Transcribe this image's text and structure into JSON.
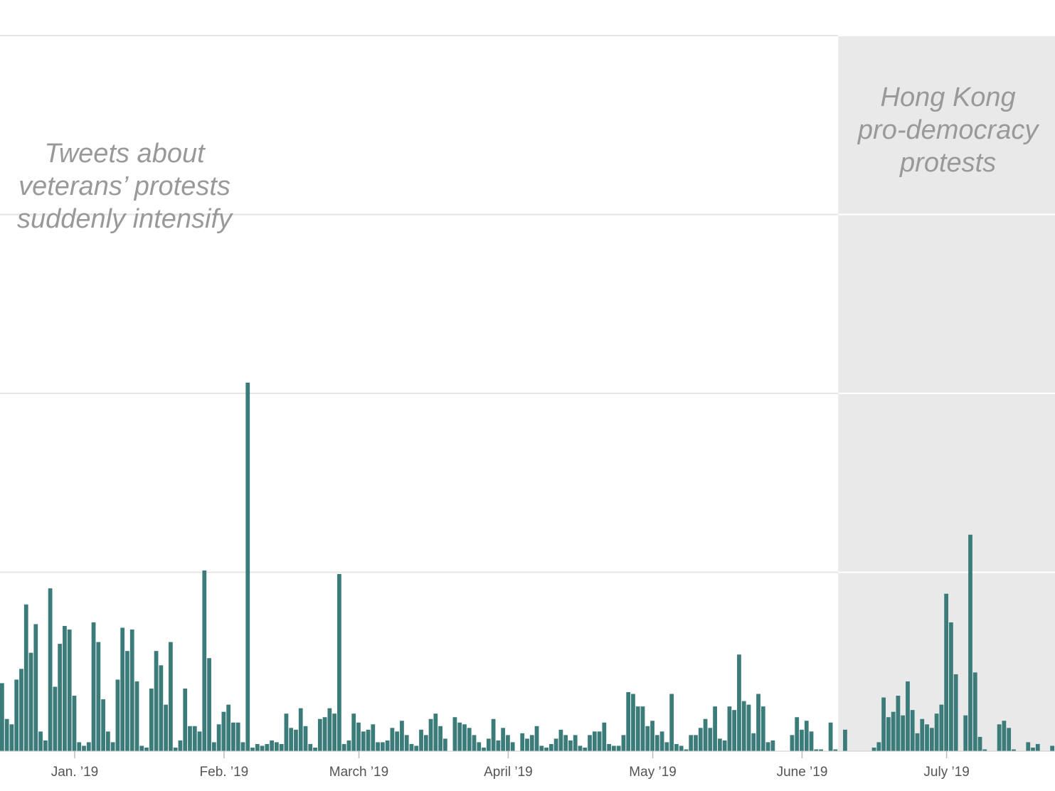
{
  "chart_data": {
    "type": "bar",
    "xlabel": "",
    "ylabel": "",
    "grid": true,
    "bar_color": "#3b7c7a",
    "shaded_color": "#e9e9e9",
    "x_start": "2018-12-17",
    "x_end": "2019-07-23",
    "x_ticks": [
      {
        "date": "2019-01-01",
        "label": "Jan. ’19"
      },
      {
        "date": "2019-02-01",
        "label": "Feb. ’19"
      },
      {
        "date": "2019-03-01",
        "label": "March ’19"
      },
      {
        "date": "2019-04-01",
        "label": "April ’19"
      },
      {
        "date": "2019-05-01",
        "label": "May ’19"
      },
      {
        "date": "2019-06-01",
        "label": "June ’19"
      },
      {
        "date": "2019-07-01",
        "label": "July ’19"
      }
    ],
    "ylim": [
      0,
      4
    ],
    "y_gridlines": [
      1,
      2,
      3,
      4
    ],
    "shaded_region": {
      "start": "2019-06-09",
      "end": "2019-07-23",
      "label": [
        "Hong Kong",
        "pro-democracy",
        "protests"
      ]
    },
    "annotations": [
      {
        "lines": [
          "Tweets about",
          "veterans’ protests",
          "suddenly intensify"
        ]
      }
    ],
    "values": [
      0.38,
      0.18,
      0.15,
      0.4,
      0.46,
      0.82,
      0.55,
      0.71,
      0.11,
      0.06,
      0.91,
      0.36,
      0.6,
      0.7,
      0.68,
      0.31,
      0.05,
      0.03,
      0.05,
      0.72,
      0.61,
      0.29,
      0.11,
      0.05,
      0.4,
      0.69,
      0.56,
      0.68,
      0.39,
      0.03,
      0.02,
      0.35,
      0.56,
      0.48,
      0.26,
      0.61,
      0.02,
      0.06,
      0.35,
      0.14,
      0.14,
      0.11,
      1.01,
      0.52,
      0.05,
      0.15,
      0.22,
      0.26,
      0.16,
      0.16,
      0.05,
      2.06,
      0.02,
      0.04,
      0.03,
      0.04,
      0.06,
      0.05,
      0.04,
      0.21,
      0.13,
      0.12,
      0.24,
      0.14,
      0.04,
      0.02,
      0.18,
      0.19,
      0.24,
      0.21,
      0.99,
      0.04,
      0.06,
      0.21,
      0.16,
      0.11,
      0.12,
      0.15,
      0.05,
      0.05,
      0.06,
      0.13,
      0.11,
      0.17,
      0.09,
      0.04,
      0.03,
      0.12,
      0.09,
      0.18,
      0.21,
      0.14,
      0.07,
      0.0,
      0.19,
      0.16,
      0.15,
      0.13,
      0.09,
      0.05,
      0.02,
      0.07,
      0.18,
      0.06,
      0.13,
      0.09,
      0.05,
      0.0,
      0.1,
      0.07,
      0.09,
      0.14,
      0.03,
      0.02,
      0.04,
      0.07,
      0.12,
      0.09,
      0.06,
      0.09,
      0.03,
      0.02,
      0.09,
      0.11,
      0.11,
      0.16,
      0.04,
      0.03,
      0.03,
      0.09,
      0.33,
      0.32,
      0.25,
      0.25,
      0.14,
      0.17,
      0.09,
      0.11,
      0.05,
      0.32,
      0.04,
      0.03,
      0.01,
      0.09,
      0.09,
      0.13,
      0.18,
      0.13,
      0.25,
      0.07,
      0.06,
      0.25,
      0.23,
      0.54,
      0.28,
      0.26,
      0.1,
      0.32,
      0.25,
      0.05,
      0.06,
      0.0,
      0.0,
      0.0,
      0.09,
      0.19,
      0.12,
      0.17,
      0.11,
      0.01,
      0.01,
      0.0,
      0.16,
      0.01,
      0.0,
      0.12,
      0.0,
      0.0,
      0.0,
      0.0,
      0.0,
      0.02,
      0.05,
      0.3,
      0.19,
      0.22,
      0.31,
      0.2,
      0.39,
      0.23,
      0.1,
      0.18,
      0.15,
      0.13,
      0.21,
      0.26,
      0.88,
      0.72,
      0.43,
      0.0,
      0.2,
      1.21,
      0.44,
      0.08,
      0.01,
      0.0,
      0.0,
      0.15,
      0.17,
      0.13,
      0.01,
      0.0,
      0.0,
      0.05,
      0.02,
      0.04,
      0.0,
      0.0,
      0.03,
      0.0,
      0.0,
      0.05
    ]
  }
}
